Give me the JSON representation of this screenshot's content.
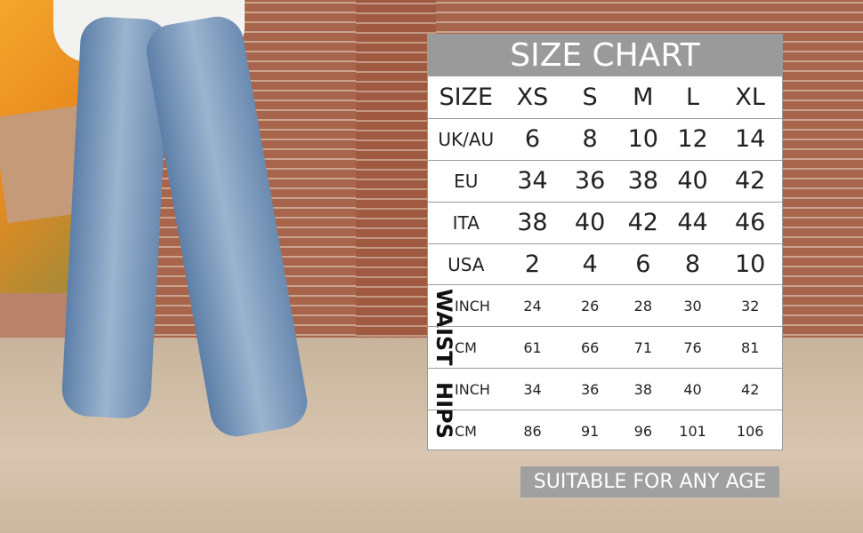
{
  "chart": {
    "title": "SIZE CHART",
    "header": [
      "SIZE",
      "XS",
      "S",
      "M",
      "L",
      "XL"
    ],
    "rows": [
      {
        "label": "UK/AU",
        "values": [
          "6",
          "8",
          "10",
          "12",
          "14"
        ]
      },
      {
        "label": "EU",
        "values": [
          "34",
          "36",
          "38",
          "40",
          "42"
        ]
      },
      {
        "label": "ITA",
        "values": [
          "38",
          "40",
          "42",
          "44",
          "46"
        ]
      },
      {
        "label": "USA",
        "values": [
          "2",
          "4",
          "6",
          "8",
          "10"
        ]
      }
    ],
    "groups": [
      {
        "name": "WAIST",
        "rows": [
          {
            "unit": "INCH",
            "values": [
              "24",
              "26",
              "28",
              "30",
              "32"
            ]
          },
          {
            "unit": "CM",
            "values": [
              "61",
              "66",
              "71",
              "76",
              "81"
            ]
          }
        ]
      },
      {
        "name": "HIPS",
        "rows": [
          {
            "unit": "INCH",
            "values": [
              "34",
              "36",
              "38",
              "40",
              "42"
            ]
          },
          {
            "unit": "CM",
            "values": [
              "86",
              "91",
              "96",
              "101",
              "106"
            ]
          }
        ]
      }
    ]
  },
  "badge": "SUITABLE FOR ANY AGE",
  "colors": {
    "header_bg": "#9a9a9a",
    "badge_bg": "#a0a0a0"
  }
}
